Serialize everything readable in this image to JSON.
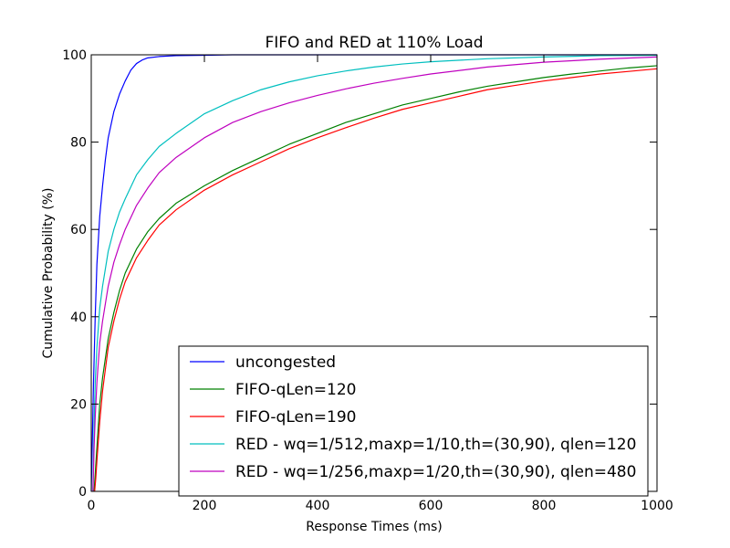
{
  "chart_data": {
    "type": "line",
    "title": "FIFO and RED at 110% Load",
    "xlabel": "Response Times (ms)",
    "ylabel": "Cumulative Probability (%)",
    "xlim": [
      0,
      1000
    ],
    "ylim": [
      0,
      100
    ],
    "xticks": [
      0,
      200,
      400,
      600,
      800,
      1000
    ],
    "yticks": [
      0,
      20,
      40,
      60,
      80,
      100
    ],
    "grid": false,
    "legend_position": "lower-right",
    "series": [
      {
        "name": "uncongested",
        "color": "#0000ff",
        "x": [
          0,
          2,
          4,
          7,
          10,
          15,
          20,
          25,
          30,
          40,
          50,
          60,
          70,
          80,
          90,
          100,
          120,
          150,
          200,
          250,
          300,
          1000
        ],
        "y": [
          0,
          12,
          25,
          40,
          52,
          63,
          70,
          76,
          81,
          87,
          91,
          94,
          96.5,
          98,
          98.8,
          99.3,
          99.6,
          99.8,
          99.9,
          100,
          100,
          100
        ]
      },
      {
        "name": "FIFO-qLen=120",
        "color": "#008000",
        "x": [
          5,
          7,
          10,
          15,
          20,
          30,
          40,
          50,
          60,
          80,
          100,
          120,
          150,
          200,
          250,
          300,
          350,
          400,
          450,
          500,
          550,
          600,
          650,
          700,
          750,
          800,
          850,
          900,
          950,
          1000
        ],
        "y": [
          0,
          4,
          10,
          20,
          26,
          35,
          41,
          46,
          50,
          55.5,
          59.5,
          62.5,
          66,
          70,
          73.5,
          76.5,
          79.5,
          82,
          84.5,
          86.5,
          88.5,
          90,
          91.5,
          92.8,
          93.8,
          94.8,
          95.6,
          96.3,
          97,
          97.5
        ]
      },
      {
        "name": "FIFO-qLen=190",
        "color": "#ff0000",
        "x": [
          6,
          8,
          10,
          15,
          20,
          30,
          40,
          50,
          60,
          80,
          100,
          120,
          150,
          200,
          250,
          300,
          350,
          400,
          450,
          500,
          550,
          600,
          650,
          700,
          750,
          800,
          850,
          900,
          950,
          1000
        ],
        "y": [
          0,
          3,
          7,
          16,
          23,
          33,
          39,
          44,
          48,
          53.5,
          57.5,
          61,
          64.5,
          69,
          72.5,
          75.5,
          78.5,
          81,
          83.3,
          85.5,
          87.5,
          89,
          90.5,
          92,
          93,
          94,
          94.8,
          95.6,
          96.2,
          96.8
        ]
      },
      {
        "name": "RED - wq=1/512,maxp=1/10,th=(30,90), qlen=120",
        "color": "#00bfbf",
        "x": [
          3,
          5,
          7,
          10,
          15,
          20,
          30,
          40,
          50,
          60,
          80,
          100,
          120,
          150,
          200,
          250,
          300,
          350,
          400,
          450,
          500,
          550,
          600,
          700,
          800,
          900,
          1000
        ],
        "y": [
          0,
          15,
          25,
          33,
          42,
          47,
          55,
          60,
          64,
          67,
          72.5,
          76,
          79,
          82,
          86.5,
          89.5,
          92,
          93.8,
          95.2,
          96.3,
          97.2,
          97.9,
          98.4,
          99.1,
          99.5,
          99.8,
          99.9
        ]
      },
      {
        "name": "RED - wq=1/256,maxp=1/20,th=(30,90), qlen=480",
        "color": "#bf00bf",
        "x": [
          3,
          5,
          7,
          10,
          15,
          20,
          30,
          40,
          50,
          60,
          80,
          100,
          120,
          150,
          200,
          250,
          300,
          350,
          400,
          450,
          500,
          550,
          600,
          700,
          800,
          900,
          1000
        ],
        "y": [
          0,
          10,
          17,
          25,
          34,
          39,
          47,
          52.5,
          56.5,
          60,
          65.5,
          69.5,
          73,
          76.5,
          81,
          84.5,
          87,
          89,
          90.7,
          92.2,
          93.5,
          94.6,
          95.6,
          97.2,
          98.3,
          99,
          99.5
        ]
      }
    ]
  }
}
